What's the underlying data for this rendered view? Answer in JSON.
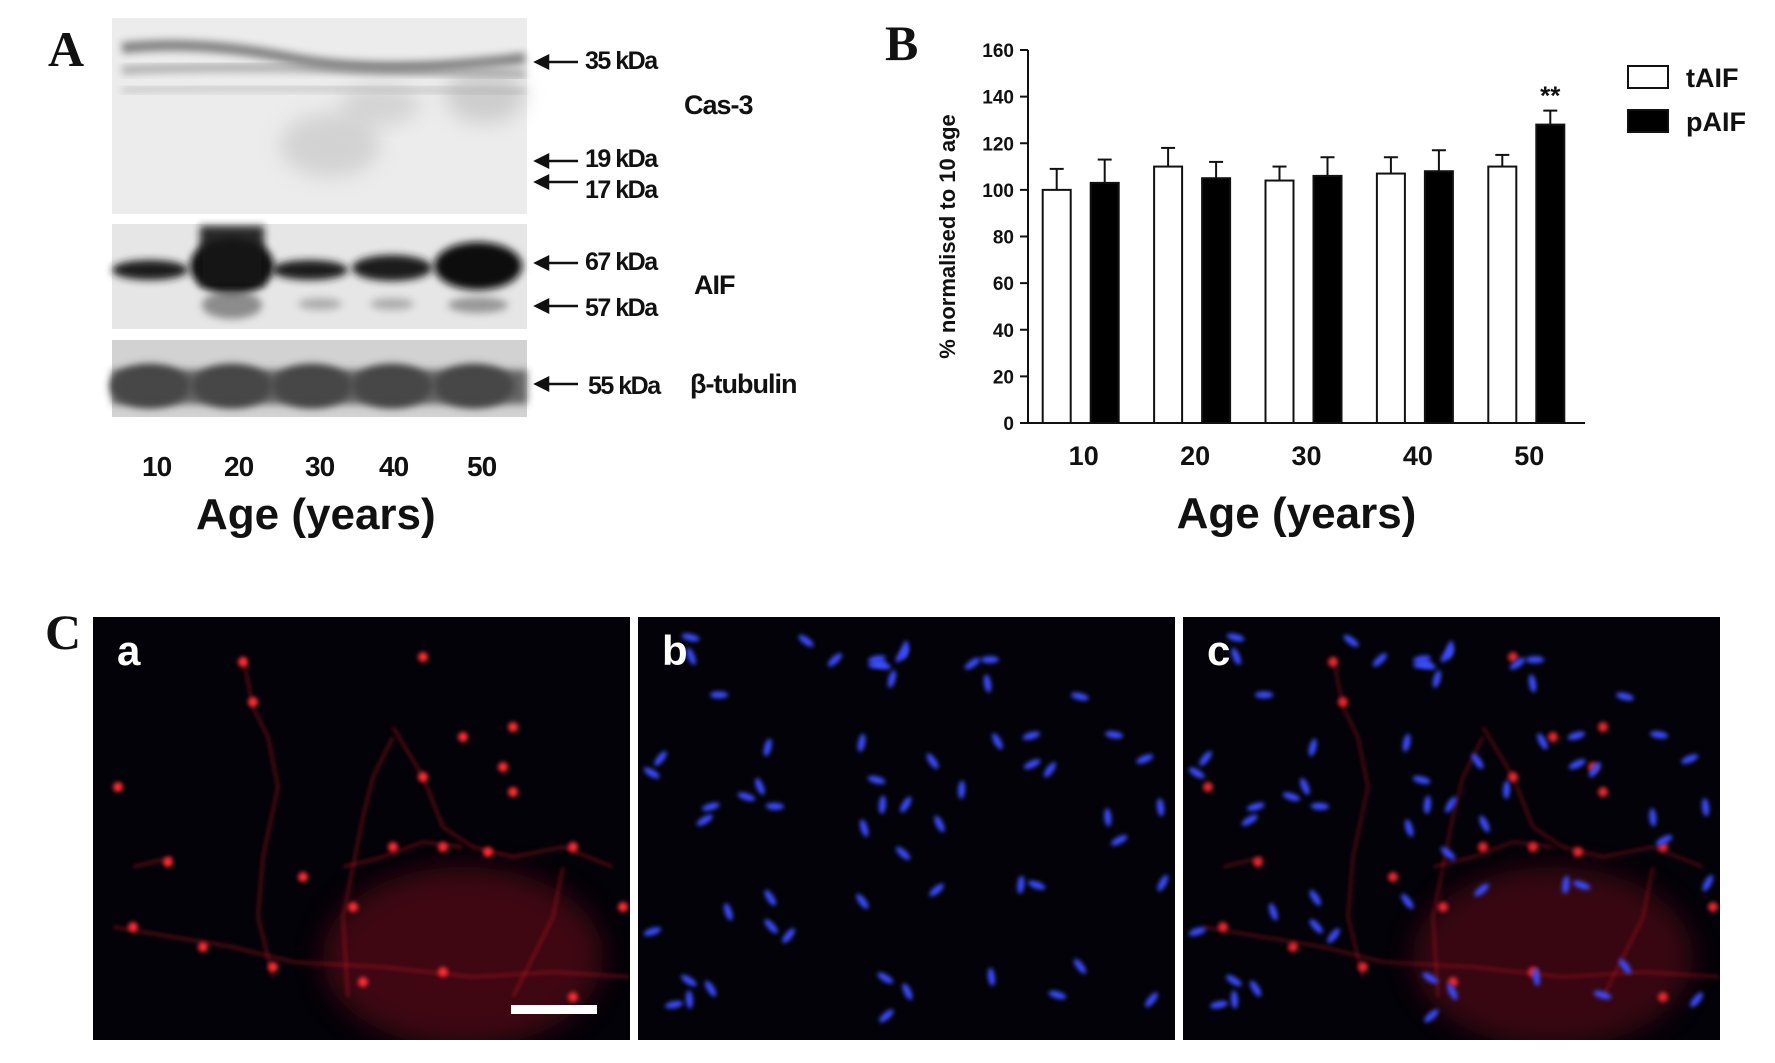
{
  "panelA": {
    "letter": "A",
    "markers": [
      {
        "label": "35 kDa"
      },
      {
        "label": "19 kDa"
      },
      {
        "label": "17 kDa"
      },
      {
        "label": "67 kDa"
      },
      {
        "label": "57 kDa"
      },
      {
        "label": "55 kDa"
      }
    ],
    "proteins": {
      "cas3": "Cas-3",
      "aif": "AIF",
      "tubulin": "β-tubulin"
    },
    "lanes": [
      "10",
      "20",
      "30",
      "40",
      "50"
    ],
    "xaxis_title": "Age (years)"
  },
  "panelB": {
    "letter": "B"
  },
  "panelC": {
    "letter": "C",
    "subpanels": [
      {
        "label": "a",
        "stain": "red"
      },
      {
        "label": "b",
        "stain": "blue"
      },
      {
        "label": "c",
        "stain": "merge"
      }
    ]
  },
  "chart_data": {
    "type": "bar",
    "categories": [
      "10",
      "20",
      "30",
      "40",
      "50"
    ],
    "series": [
      {
        "name": "tAIF",
        "values": [
          100,
          110,
          104,
          107,
          110
        ],
        "errors": [
          9,
          8,
          6,
          7,
          5
        ],
        "color": "#ffffff"
      },
      {
        "name": "pAIF",
        "values": [
          103,
          105,
          106,
          108,
          128
        ],
        "errors": [
          10,
          7,
          8,
          9,
          6
        ],
        "color": "#000000"
      }
    ],
    "xlabel": "Age (years)",
    "ylabel": "% normalised to 10 age",
    "ylim": [
      0,
      160
    ],
    "yticks": [
      "0",
      "20",
      "40",
      "60",
      "80",
      "100",
      "120",
      "140",
      "160"
    ],
    "annotation": {
      "text": "**",
      "category": "50",
      "series": "pAIF"
    },
    "legend_position": "top-right",
    "grid": false
  }
}
